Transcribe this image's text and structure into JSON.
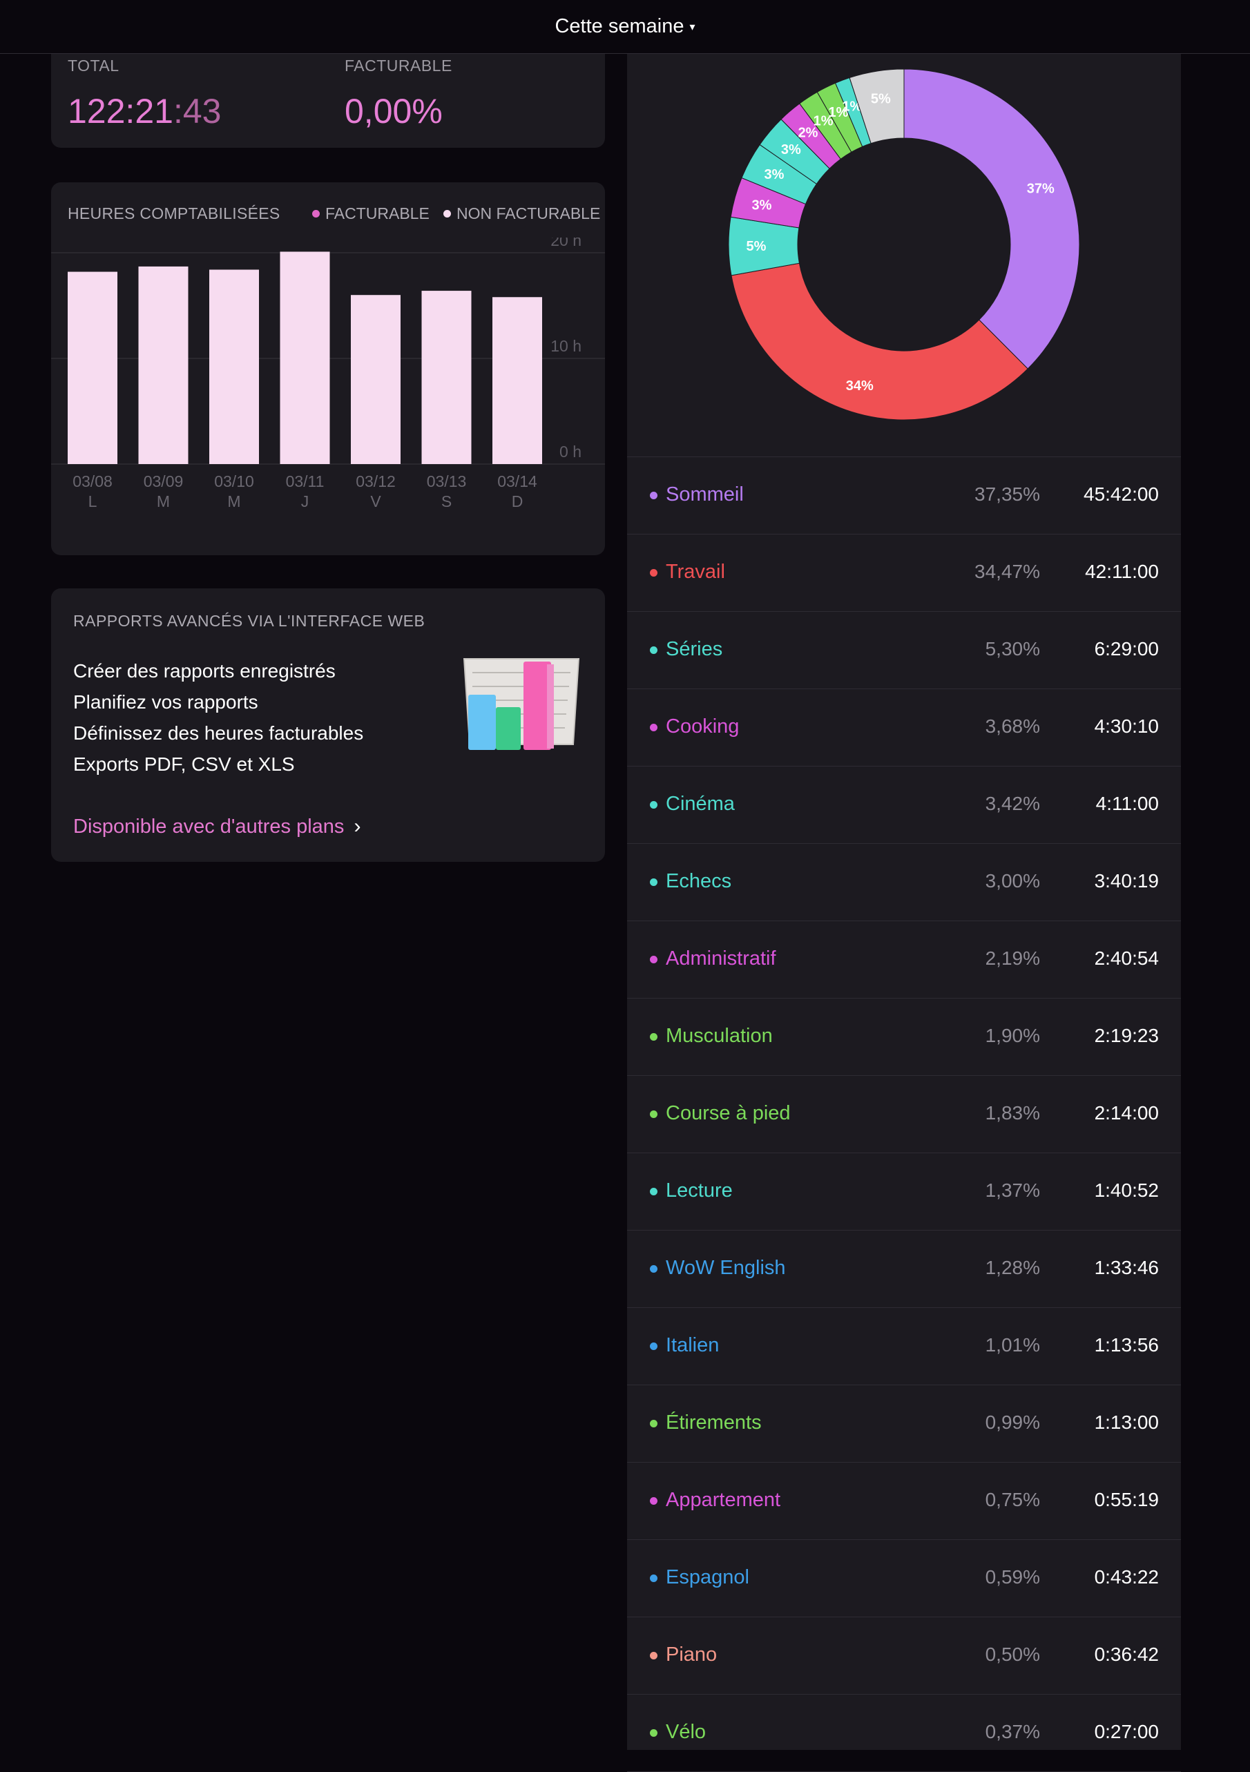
{
  "header": {
    "title": "Cette semaine",
    "caret": "▾"
  },
  "summary": {
    "total_label": "TOTAL",
    "total_main": "122:21",
    "total_seconds": ":43",
    "billable_label": "FACTURABLE",
    "billable_value": "0,00%"
  },
  "hours_chart": {
    "title": "HEURES COMPTABILISÉES",
    "legend": [
      {
        "label": "FACTURABLE",
        "color": "#e066c6"
      },
      {
        "label": "NON FACTURABLE",
        "color": "#f7dcf0"
      }
    ]
  },
  "chart_data": [
    {
      "type": "bar",
      "title": "HEURES COMPTABILISÉES",
      "categories": [
        "03/08",
        "03/09",
        "03/10",
        "03/11",
        "03/12",
        "03/13",
        "03/14"
      ],
      "day_letters": [
        "L",
        "M",
        "M",
        "J",
        "V",
        "S",
        "D"
      ],
      "series": [
        {
          "name": "NON FACTURABLE",
          "color": "#f7dcf0",
          "values": [
            18.2,
            18.7,
            18.4,
            20.1,
            16.0,
            16.4,
            15.8
          ]
        },
        {
          "name": "FACTURABLE",
          "color": "#e066c6",
          "values": [
            0,
            0,
            0,
            0,
            0,
            0,
            0
          ]
        }
      ],
      "y_ticks": [
        "20 h",
        "10 h",
        "0 h"
      ],
      "ylim": [
        0,
        20
      ]
    },
    {
      "type": "pie",
      "variant": "donut",
      "slices": [
        {
          "label": "37%",
          "value": 37.35,
          "color": "#b67cf1"
        },
        {
          "label": "34%",
          "value": 34.47,
          "color": "#f05053"
        },
        {
          "label": "5%",
          "value": 5.3,
          "color": "#4fdccd"
        },
        {
          "label": "3%",
          "value": 3.68,
          "color": "#d955d9"
        },
        {
          "label": "3%",
          "value": 3.42,
          "color": "#4fdccd"
        },
        {
          "label": "3%",
          "value": 3.0,
          "color": "#4fdccd"
        },
        {
          "label": "2%",
          "value": 2.19,
          "color": "#d955d9"
        },
        {
          "label": "1%",
          "value": 1.9,
          "color": "#7ddb5a"
        },
        {
          "label": "1%",
          "value": 1.83,
          "color": "#7ddb5a"
        },
        {
          "label": "1%",
          "value": 1.37,
          "color": "#4fdccd"
        },
        {
          "label": "5%",
          "value": 5.0,
          "color": "#d4d4d6"
        }
      ]
    }
  ],
  "promo": {
    "title": "RAPPORTS AVANCÉS VIA L'INTERFACE WEB",
    "items": [
      "Créer des rapports enregistrés",
      "Planifiez vos rapports",
      "Définissez des heures facturables",
      "Exports PDF, CSV et XLS"
    ],
    "link": "Disponible avec d'autres plans"
  },
  "projects": [
    {
      "name": "Sommeil",
      "pct": "37,35%",
      "time": "45:42:00",
      "color": "#b67cf1"
    },
    {
      "name": "Travail",
      "pct": "34,47%",
      "time": "42:11:00",
      "color": "#f05053"
    },
    {
      "name": "Séries",
      "pct": "5,30%",
      "time": "6:29:00",
      "color": "#4fdccd"
    },
    {
      "name": "Cooking",
      "pct": "3,68%",
      "time": "4:30:10",
      "color": "#d955d9"
    },
    {
      "name": "Cinéma",
      "pct": "3,42%",
      "time": "4:11:00",
      "color": "#4fdccd"
    },
    {
      "name": "Echecs",
      "pct": "3,00%",
      "time": "3:40:19",
      "color": "#4fdccd"
    },
    {
      "name": "Administratif",
      "pct": "2,19%",
      "time": "2:40:54",
      "color": "#d955d9"
    },
    {
      "name": "Musculation",
      "pct": "1,90%",
      "time": "2:19:23",
      "color": "#7ddb5a"
    },
    {
      "name": "Course à pied",
      "pct": "1,83%",
      "time": "2:14:00",
      "color": "#7ddb5a"
    },
    {
      "name": "Lecture",
      "pct": "1,37%",
      "time": "1:40:52",
      "color": "#4fdccd"
    },
    {
      "name": "WoW English",
      "pct": "1,28%",
      "time": "1:33:46",
      "color": "#3d9fe8"
    },
    {
      "name": "Italien",
      "pct": "1,01%",
      "time": "1:13:56",
      "color": "#3d9fe8"
    },
    {
      "name": "Étirements",
      "pct": "0,99%",
      "time": "1:13:00",
      "color": "#7ddb5a"
    },
    {
      "name": "Appartement",
      "pct": "0,75%",
      "time": "0:55:19",
      "color": "#d955d9"
    },
    {
      "name": "Espagnol",
      "pct": "0,59%",
      "time": "0:43:22",
      "color": "#3d9fe8"
    },
    {
      "name": "Piano",
      "pct": "0,50%",
      "time": "0:36:42",
      "color": "#f4988a"
    },
    {
      "name": "Vélo",
      "pct": "0,37%",
      "time": "0:27:00",
      "color": "#7ddb5a"
    }
  ]
}
